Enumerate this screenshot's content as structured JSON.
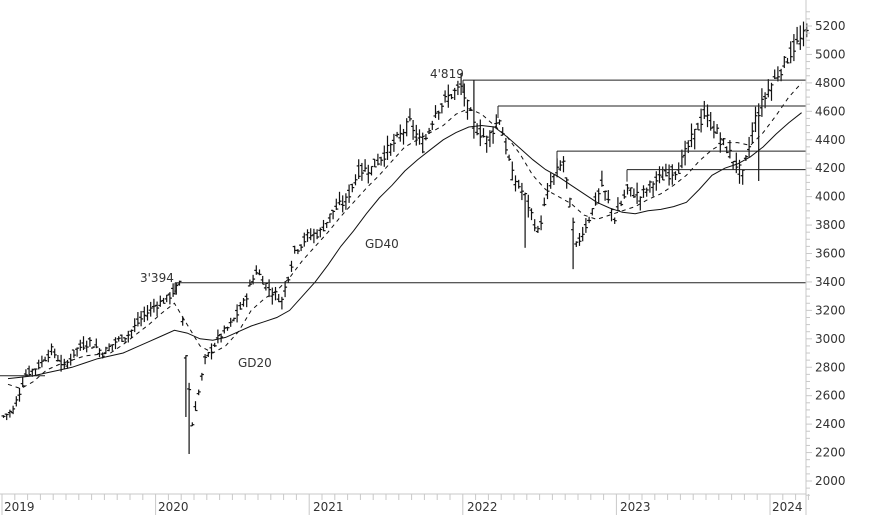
{
  "chart_data": {
    "type": "line",
    "subtype": "ohlc-bar-weekly",
    "title": "",
    "xlabel": "",
    "ylabel": "",
    "ylim": [
      1900,
      5300
    ],
    "y_ticks": [
      2000,
      2200,
      2400,
      2600,
      2800,
      3000,
      3200,
      3400,
      3600,
      3800,
      4000,
      4200,
      4400,
      4600,
      4800,
      5000,
      5200
    ],
    "x_ticks": [
      "2019",
      "2020",
      "2021",
      "2022",
      "2023",
      "2024"
    ],
    "grid": false,
    "legend": "none",
    "annotations": [
      {
        "text": "4'819",
        "x": "2022-01",
        "y": 4819
      },
      {
        "text": "3'394",
        "x": "2020-02",
        "y": 3394
      },
      {
        "text": "GD40",
        "x": "2021-05",
        "y": 3700
      },
      {
        "text": "GD20",
        "x": "2020-06",
        "y": 2880
      }
    ],
    "horizontal_levels": [
      {
        "value": 2740,
        "from": "2019-01",
        "to": "2019-04"
      },
      {
        "value": 3394,
        "from": "2020-02",
        "to": "2024-03"
      },
      {
        "value": 4819,
        "from": "2022-01",
        "to": "2024-03"
      },
      {
        "value": 4637,
        "from": "2022-03",
        "to": "2024-03"
      },
      {
        "value": 4320,
        "from": "2022-08",
        "to": "2024-03"
      },
      {
        "value": 4190,
        "from": "2023-02",
        "to": "2024-03"
      }
    ],
    "series": [
      {
        "name": "Price (weekly close, approx.)",
        "x": [
          "2019-01",
          "2019-02",
          "2019-03",
          "2019-04",
          "2019-05",
          "2019-06",
          "2019-07",
          "2019-08",
          "2019-09",
          "2019-10",
          "2019-11",
          "2019-12",
          "2020-01",
          "2020-02",
          "2020-03",
          "2020-04",
          "2020-05",
          "2020-06",
          "2020-07",
          "2020-08",
          "2020-09",
          "2020-10",
          "2020-11",
          "2020-12",
          "2021-01",
          "2021-02",
          "2021-03",
          "2021-04",
          "2021-05",
          "2021-06",
          "2021-07",
          "2021-08",
          "2021-09",
          "2021-10",
          "2021-11",
          "2021-12",
          "2022-01",
          "2022-02",
          "2022-03",
          "2022-04",
          "2022-05",
          "2022-06",
          "2022-07",
          "2022-08",
          "2022-09",
          "2022-10",
          "2022-11",
          "2022-12",
          "2023-01",
          "2023-02",
          "2023-03",
          "2023-04",
          "2023-05",
          "2023-06",
          "2023-07",
          "2023-08",
          "2023-09",
          "2023-10",
          "2023-11",
          "2023-12",
          "2024-01",
          "2024-02",
          "2024-03"
        ],
        "values": [
          2500,
          2750,
          2810,
          2920,
          2800,
          2930,
          2980,
          2900,
          2980,
          3030,
          3140,
          3230,
          3280,
          3380,
          2400,
          2850,
          3000,
          3100,
          3250,
          3480,
          3350,
          3270,
          3620,
          3720,
          3750,
          3900,
          3970,
          4180,
          4200,
          4300,
          4400,
          4520,
          4350,
          4600,
          4700,
          4770,
          4500,
          4400,
          4550,
          4150,
          4000,
          3750,
          4100,
          4250,
          3650,
          3850,
          4080,
          3850,
          4050,
          4000,
          4100,
          4150,
          4200,
          4400,
          4580,
          4450,
          4300,
          4150,
          4550,
          4750,
          4900,
          5050,
          5150
        ]
      },
      {
        "name": "GD20",
        "style": "dashed",
        "values": [
          2680,
          2650,
          2700,
          2780,
          2820,
          2850,
          2880,
          2890,
          2900,
          2960,
          3030,
          3100,
          3180,
          3250,
          3100,
          2950,
          2900,
          2950,
          3050,
          3200,
          3280,
          3340,
          3430,
          3550,
          3650,
          3750,
          3860,
          3960,
          4060,
          4150,
          4250,
          4350,
          4400,
          4450,
          4500,
          4580,
          4620,
          4580,
          4500,
          4420,
          4300,
          4150,
          4050,
          4000,
          3950,
          3870,
          3840,
          3870,
          3900,
          3930,
          3980,
          4020,
          4080,
          4150,
          4250,
          4330,
          4380,
          4380,
          4360,
          4450,
          4570,
          4700,
          4800
        ]
      },
      {
        "name": "GD40",
        "style": "solid",
        "values": [
          2720,
          2730,
          2740,
          2760,
          2780,
          2800,
          2830,
          2860,
          2880,
          2900,
          2940,
          2980,
          3020,
          3060,
          3040,
          3000,
          2990,
          3010,
          3050,
          3090,
          3120,
          3150,
          3200,
          3300,
          3400,
          3520,
          3650,
          3760,
          3880,
          3990,
          4080,
          4180,
          4260,
          4330,
          4400,
          4450,
          4490,
          4500,
          4490,
          4420,
          4340,
          4260,
          4190,
          4140,
          4080,
          4020,
          3960,
          3920,
          3890,
          3880,
          3900,
          3910,
          3930,
          3960,
          4050,
          4150,
          4200,
          4230,
          4280,
          4350,
          4440,
          4520,
          4590
        ]
      }
    ]
  },
  "axes": {
    "y_labels": [
      "5200",
      "5000",
      "4800",
      "4600",
      "4400",
      "4200",
      "4000",
      "3800",
      "3600",
      "3400",
      "3200",
      "3000",
      "2800",
      "2600",
      "2400",
      "2200",
      "2000"
    ],
    "x_labels": [
      "2019",
      "2020",
      "2021",
      "2022",
      "2023",
      "2024"
    ]
  },
  "labels": {
    "high_2022": "4'819",
    "high_2020": "3'394",
    "gd40": "GD40",
    "gd20": "GD20"
  }
}
